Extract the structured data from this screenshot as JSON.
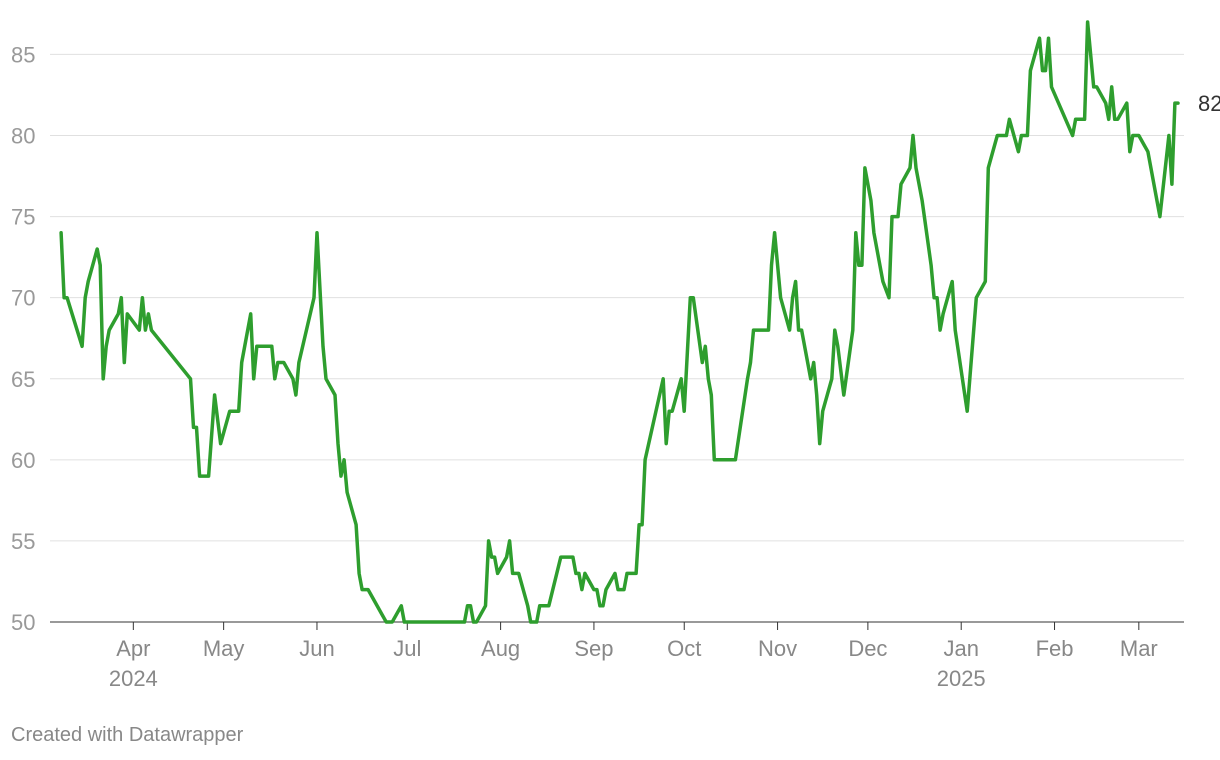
{
  "chart_data": {
    "type": "line",
    "title": "",
    "xlabel": "",
    "ylabel": "",
    "ylim": [
      50,
      87
    ],
    "yticks": [
      50,
      55,
      60,
      65,
      70,
      75,
      80,
      85
    ],
    "grid": true,
    "line_color": "#2e9e2e",
    "end_label": "82",
    "x_axis": {
      "ticks": [
        {
          "date": "2024-04-01",
          "label": "Apr",
          "year": "2024"
        },
        {
          "date": "2024-05-01",
          "label": "May",
          "year": ""
        },
        {
          "date": "2024-06-01",
          "label": "Jun",
          "year": ""
        },
        {
          "date": "2024-07-01",
          "label": "Jul",
          "year": ""
        },
        {
          "date": "2024-08-01",
          "label": "Aug",
          "year": ""
        },
        {
          "date": "2024-09-01",
          "label": "Sep",
          "year": ""
        },
        {
          "date": "2024-10-01",
          "label": "Oct",
          "year": ""
        },
        {
          "date": "2024-11-01",
          "label": "Nov",
          "year": ""
        },
        {
          "date": "2024-12-01",
          "label": "Dec",
          "year": ""
        },
        {
          "date": "2025-01-01",
          "label": "Jan",
          "year": "2025"
        },
        {
          "date": "2025-02-01",
          "label": "Feb",
          "year": ""
        },
        {
          "date": "2025-03-01",
          "label": "Mar",
          "year": ""
        }
      ]
    },
    "series": [
      {
        "points": [
          [
            "2024-03-08",
            74
          ],
          [
            "2024-03-09",
            70
          ],
          [
            "2024-03-10",
            70
          ],
          [
            "2024-03-15",
            67
          ],
          [
            "2024-03-16",
            70
          ],
          [
            "2024-03-17",
            71
          ],
          [
            "2024-03-20",
            73
          ],
          [
            "2024-03-21",
            72
          ],
          [
            "2024-03-22",
            65
          ],
          [
            "2024-03-23",
            67
          ],
          [
            "2024-03-24",
            68
          ],
          [
            "2024-03-27",
            69
          ],
          [
            "2024-03-28",
            70
          ],
          [
            "2024-03-29",
            66
          ],
          [
            "2024-03-30",
            69
          ],
          [
            "2024-04-03",
            68
          ],
          [
            "2024-04-04",
            70
          ],
          [
            "2024-04-05",
            68
          ],
          [
            "2024-04-06",
            69
          ],
          [
            "2024-04-07",
            68
          ],
          [
            "2024-04-20",
            65
          ],
          [
            "2024-04-21",
            62
          ],
          [
            "2024-04-22",
            62
          ],
          [
            "2024-04-23",
            59
          ],
          [
            "2024-04-26",
            59
          ],
          [
            "2024-04-28",
            64
          ],
          [
            "2024-04-30",
            61
          ],
          [
            "2024-05-03",
            63
          ],
          [
            "2024-05-06",
            63
          ],
          [
            "2024-05-07",
            66
          ],
          [
            "2024-05-10",
            69
          ],
          [
            "2024-05-11",
            65
          ],
          [
            "2024-05-12",
            67
          ],
          [
            "2024-05-17",
            67
          ],
          [
            "2024-05-18",
            65
          ],
          [
            "2024-05-19",
            66
          ],
          [
            "2024-05-21",
            66
          ],
          [
            "2024-05-24",
            65
          ],
          [
            "2024-05-25",
            64
          ],
          [
            "2024-05-26",
            66
          ],
          [
            "2024-05-31",
            70
          ],
          [
            "2024-06-01",
            74
          ],
          [
            "2024-06-03",
            67
          ],
          [
            "2024-06-04",
            65
          ],
          [
            "2024-06-07",
            64
          ],
          [
            "2024-06-08",
            61
          ],
          [
            "2024-06-09",
            59
          ],
          [
            "2024-06-10",
            60
          ],
          [
            "2024-06-11",
            58
          ],
          [
            "2024-06-14",
            56
          ],
          [
            "2024-06-15",
            53
          ],
          [
            "2024-06-16",
            52
          ],
          [
            "2024-06-18",
            52
          ],
          [
            "2024-06-24",
            50
          ],
          [
            "2024-06-26",
            50
          ],
          [
            "2024-06-29",
            51
          ],
          [
            "2024-06-30",
            50
          ],
          [
            "2024-07-20",
            50
          ],
          [
            "2024-07-21",
            51
          ],
          [
            "2024-07-22",
            51
          ],
          [
            "2024-07-23",
            50
          ],
          [
            "2024-07-24",
            50
          ],
          [
            "2024-07-27",
            51
          ],
          [
            "2024-07-28",
            55
          ],
          [
            "2024-07-29",
            54
          ],
          [
            "2024-07-30",
            54
          ],
          [
            "2024-07-31",
            53
          ],
          [
            "2024-08-03",
            54
          ],
          [
            "2024-08-04",
            55
          ],
          [
            "2024-08-05",
            53
          ],
          [
            "2024-08-07",
            53
          ],
          [
            "2024-08-10",
            51
          ],
          [
            "2024-08-11",
            50
          ],
          [
            "2024-08-13",
            50
          ],
          [
            "2024-08-14",
            51
          ],
          [
            "2024-08-17",
            51
          ],
          [
            "2024-08-21",
            54
          ],
          [
            "2024-08-25",
            54
          ],
          [
            "2024-08-26",
            53
          ],
          [
            "2024-08-27",
            53
          ],
          [
            "2024-08-28",
            52
          ],
          [
            "2024-08-29",
            53
          ],
          [
            "2024-09-01",
            52
          ],
          [
            "2024-09-02",
            52
          ],
          [
            "2024-09-03",
            51
          ],
          [
            "2024-09-04",
            51
          ],
          [
            "2024-09-05",
            52
          ],
          [
            "2024-09-08",
            53
          ],
          [
            "2024-09-09",
            52
          ],
          [
            "2024-09-11",
            52
          ],
          [
            "2024-09-12",
            53
          ],
          [
            "2024-09-15",
            53
          ],
          [
            "2024-09-16",
            56
          ],
          [
            "2024-09-17",
            56
          ],
          [
            "2024-09-18",
            60
          ],
          [
            "2024-09-24",
            65
          ],
          [
            "2024-09-25",
            61
          ],
          [
            "2024-09-26",
            63
          ],
          [
            "2024-09-27",
            63
          ],
          [
            "2024-09-30",
            65
          ],
          [
            "2024-10-01",
            63
          ],
          [
            "2024-10-03",
            70
          ],
          [
            "2024-10-04",
            70
          ],
          [
            "2024-10-07",
            66
          ],
          [
            "2024-10-08",
            67
          ],
          [
            "2024-10-09",
            65
          ],
          [
            "2024-10-10",
            64
          ],
          [
            "2024-10-11",
            60
          ],
          [
            "2024-10-18",
            60
          ],
          [
            "2024-10-22",
            65
          ],
          [
            "2024-10-23",
            66
          ],
          [
            "2024-10-24",
            68
          ],
          [
            "2024-10-29",
            68
          ],
          [
            "2024-10-30",
            72
          ],
          [
            "2024-10-31",
            74
          ],
          [
            "2024-11-02",
            70
          ],
          [
            "2024-11-05",
            68
          ],
          [
            "2024-11-06",
            70
          ],
          [
            "2024-11-07",
            71
          ],
          [
            "2024-11-08",
            68
          ],
          [
            "2024-11-09",
            68
          ],
          [
            "2024-11-12",
            65
          ],
          [
            "2024-11-13",
            66
          ],
          [
            "2024-11-14",
            64
          ],
          [
            "2024-11-15",
            61
          ],
          [
            "2024-11-16",
            63
          ],
          [
            "2024-11-19",
            65
          ],
          [
            "2024-11-20",
            68
          ],
          [
            "2024-11-21",
            67
          ],
          [
            "2024-11-23",
            64
          ],
          [
            "2024-11-26",
            68
          ],
          [
            "2024-11-27",
            74
          ],
          [
            "2024-11-28",
            72
          ],
          [
            "2024-11-29",
            72
          ],
          [
            "2024-11-30",
            78
          ],
          [
            "2024-12-02",
            76
          ],
          [
            "2024-12-03",
            74
          ],
          [
            "2024-12-06",
            71
          ],
          [
            "2024-12-08",
            70
          ],
          [
            "2024-12-09",
            75
          ],
          [
            "2024-12-10",
            75
          ],
          [
            "2024-12-11",
            75
          ],
          [
            "2024-12-12",
            77
          ],
          [
            "2024-12-15",
            78
          ],
          [
            "2024-12-16",
            80
          ],
          [
            "2024-12-17",
            78
          ],
          [
            "2024-12-19",
            76
          ],
          [
            "2024-12-22",
            72
          ],
          [
            "2024-12-23",
            70
          ],
          [
            "2024-12-24",
            70
          ],
          [
            "2024-12-25",
            68
          ],
          [
            "2024-12-26",
            69
          ],
          [
            "2024-12-29",
            71
          ],
          [
            "2024-12-30",
            68
          ],
          [
            "2025-01-03",
            63
          ],
          [
            "2025-01-06",
            70
          ],
          [
            "2025-01-09",
            71
          ],
          [
            "2025-01-10",
            78
          ],
          [
            "2025-01-13",
            80
          ],
          [
            "2025-01-16",
            80
          ],
          [
            "2025-01-17",
            81
          ],
          [
            "2025-01-20",
            79
          ],
          [
            "2025-01-21",
            80
          ],
          [
            "2025-01-23",
            80
          ],
          [
            "2025-01-24",
            84
          ],
          [
            "2025-01-27",
            86
          ],
          [
            "2025-01-28",
            84
          ],
          [
            "2025-01-29",
            84
          ],
          [
            "2025-01-30",
            86
          ],
          [
            "2025-01-31",
            83
          ],
          [
            "2025-02-07",
            80
          ],
          [
            "2025-02-08",
            81
          ],
          [
            "2025-02-11",
            81
          ],
          [
            "2025-02-12",
            87
          ],
          [
            "2025-02-14",
            83
          ],
          [
            "2025-02-15",
            83
          ],
          [
            "2025-02-18",
            82
          ],
          [
            "2025-02-19",
            81
          ],
          [
            "2025-02-20",
            83
          ],
          [
            "2025-02-21",
            81
          ],
          [
            "2025-02-22",
            81
          ],
          [
            "2025-02-25",
            82
          ],
          [
            "2025-02-26",
            79
          ],
          [
            "2025-02-27",
            80
          ],
          [
            "2025-03-01",
            80
          ],
          [
            "2025-03-04",
            79
          ],
          [
            "2025-03-08",
            75
          ],
          [
            "2025-03-11",
            80
          ],
          [
            "2025-03-12",
            77
          ],
          [
            "2025-03-13",
            82
          ],
          [
            "2025-03-14",
            82
          ]
        ]
      }
    ]
  },
  "footer": {
    "credit": "Created with Datawrapper"
  }
}
